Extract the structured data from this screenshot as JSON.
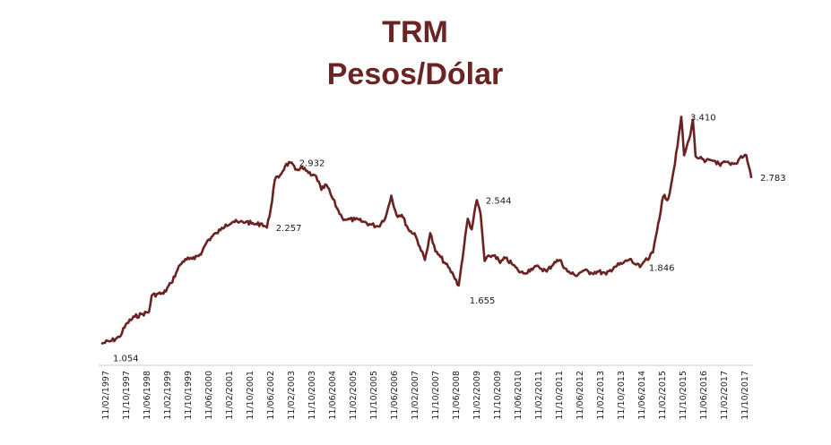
{
  "chart_data": {
    "type": "line",
    "title": "TRM",
    "subtitle": "Pesos/Dólar",
    "xlabel": "",
    "ylabel": "",
    "grid": false,
    "legend": "none",
    "colors": {
      "line": "#6b2222",
      "title": "#6b2424",
      "axis": "#c8c8c8"
    },
    "ylim": [
      900,
      3600
    ],
    "x_tick_labels": [
      "11/02/1997",
      "11/10/1997",
      "11/06/1998",
      "11/02/1999",
      "11/10/1999",
      "11/06/2000",
      "11/02/2001",
      "11/10/2001",
      "11/06/2002",
      "11/02/2003",
      "11/10/2003",
      "11/06/2004",
      "11/02/2005",
      "11/10/2005",
      "11/06/2006",
      "11/02/2007",
      "11/10/2007",
      "11/06/2008",
      "11/02/2009",
      "11/10/2009",
      "11/06/2010",
      "11/02/2011",
      "11/10/2011",
      "11/06/2012",
      "11/02/2013",
      "11/10/2013",
      "11/06/2014",
      "11/02/2015",
      "11/10/2015",
      "11/06/2016",
      "11/02/2017",
      "11/10/2017"
    ],
    "series": [
      {
        "x": [
          "1997-02-11",
          "1997-06-01",
          "1997-09-01",
          "1997-12-01",
          "1998-03-01",
          "1998-06-01",
          "1998-08-15",
          "1998-09-15",
          "1998-12-01",
          "1999-02-01",
          "1999-05-01",
          "1999-07-01",
          "1999-08-15",
          "1999-10-15",
          "1999-12-01",
          "2000-02-01",
          "2000-05-01",
          "2000-07-01",
          "2000-10-15",
          "2000-12-01",
          "2001-02-01",
          "2001-05-01",
          "2001-07-01",
          "2001-10-01",
          "2001-12-01",
          "2002-02-01",
          "2002-04-01",
          "2002-06-01",
          "2002-07-15",
          "2002-09-01",
          "2002-11-01",
          "2003-01-01",
          "2003-03-01",
          "2003-05-01",
          "2003-07-01",
          "2003-09-01",
          "2003-11-01",
          "2004-01-01",
          "2004-03-01",
          "2004-05-01",
          "2004-07-01",
          "2004-09-01",
          "2004-11-01",
          "2005-01-01",
          "2005-04-01",
          "2005-07-01",
          "2005-10-01",
          "2006-01-01",
          "2006-04-01",
          "2006-06-01",
          "2006-08-01",
          "2006-10-01",
          "2007-01-01",
          "2007-03-01",
          "2007-05-01",
          "2007-07-01",
          "2007-09-01",
          "2007-11-01",
          "2008-01-01",
          "2008-03-01",
          "2008-06-01",
          "2008-08-01",
          "2008-10-01",
          "2008-11-15",
          "2009-01-01",
          "2009-03-02",
          "2009-04-15",
          "2009-06-01",
          "2009-08-01",
          "2009-10-01",
          "2009-12-01",
          "2010-02-01",
          "2010-05-01",
          "2010-07-01",
          "2010-09-01",
          "2010-12-01",
          "2011-03-01",
          "2011-06-01",
          "2011-09-01",
          "2011-11-01",
          "2012-02-01",
          "2012-05-01",
          "2012-08-01",
          "2012-11-01",
          "2013-02-01",
          "2013-05-01",
          "2013-08-01",
          "2013-11-01",
          "2014-02-01",
          "2014-04-01",
          "2014-06-01",
          "2014-07-25",
          "2014-09-01",
          "2014-11-01",
          "2015-01-01",
          "2015-03-01",
          "2015-05-01",
          "2015-07-01",
          "2015-08-15",
          "2015-09-29",
          "2015-11-01",
          "2016-01-01",
          "2016-02-12",
          "2016-03-15",
          "2016-05-01",
          "2016-07-01",
          "2016-09-01",
          "2016-11-01",
          "2017-01-01",
          "2017-03-01",
          "2017-05-01",
          "2017-07-01",
          "2017-09-01",
          "2017-11-01",
          "2017-12-29"
        ],
        "values": [
          1054,
          1080,
          1120,
          1265,
          1330,
          1360,
          1380,
          1550,
          1570,
          1570,
          1680,
          1790,
          1870,
          1930,
          1930,
          1930,
          2010,
          2120,
          2200,
          2230,
          2290,
          2320,
          2310,
          2320,
          2300,
          2290,
          2300,
          2257,
          2450,
          2750,
          2800,
          2900,
          2932,
          2860,
          2880,
          2850,
          2800,
          2790,
          2650,
          2700,
          2580,
          2460,
          2360,
          2340,
          2340,
          2320,
          2290,
          2270,
          2380,
          2590,
          2390,
          2390,
          2220,
          2200,
          2060,
          1920,
          2200,
          2010,
          1950,
          1880,
          1760,
          1655,
          2050,
          2350,
          2240,
          2544,
          2400,
          1910,
          1960,
          1970,
          1890,
          1940,
          1870,
          1810,
          1780,
          1830,
          1850,
          1800,
          1900,
          1920,
          1800,
          1760,
          1810,
          1790,
          1800,
          1770,
          1850,
          1880,
          1930,
          1880,
          1846,
          1910,
          1920,
          2000,
          2300,
          2580,
          2560,
          2850,
          3100,
          3410,
          3010,
          3180,
          3380,
          3000,
          2980,
          2940,
          2960,
          2950,
          2900,
          2940,
          2910,
          2920,
          3000,
          3010,
          2783
        ]
      }
    ],
    "annotations": [
      {
        "label": "1.054",
        "x": "1997-02-11",
        "y": 1054,
        "place": "below-right"
      },
      {
        "label": "2.257",
        "x": "2002-06-01",
        "y": 2257,
        "place": "right"
      },
      {
        "label": "2.932",
        "x": "2003-03-01",
        "y": 2932,
        "place": "right"
      },
      {
        "label": "1.655",
        "x": "2008-08-01",
        "y": 1655,
        "place": "below-right"
      },
      {
        "label": "2.544",
        "x": "2009-03-02",
        "y": 2544,
        "place": "right"
      },
      {
        "label": "1.846",
        "x": "2014-06-01",
        "y": 1846,
        "place": "right"
      },
      {
        "label": "3.410",
        "x": "2015-09-29",
        "y": 3410,
        "place": "right"
      },
      {
        "label": "2.783",
        "x": "2017-12-29",
        "y": 2783,
        "place": "right"
      }
    ]
  }
}
